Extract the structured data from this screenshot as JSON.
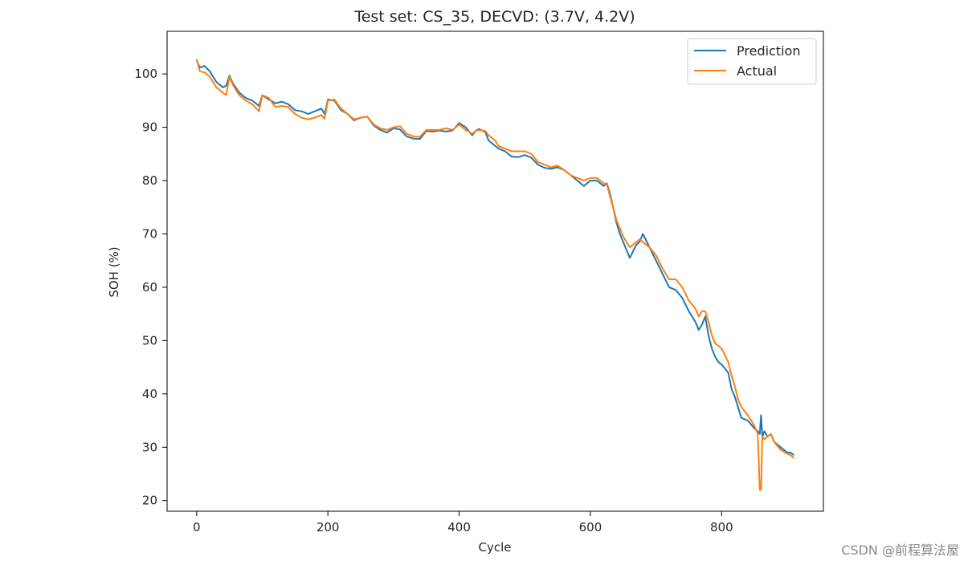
{
  "chart_data": {
    "type": "line",
    "title": "Test set: CS_35, DECVD: (3.7V, 4.2V)",
    "xlabel": "Cycle",
    "ylabel": "SOH (%)",
    "xlim": [
      -45,
      955
    ],
    "ylim": [
      18,
      108
    ],
    "xticks": [
      0,
      200,
      400,
      600,
      800
    ],
    "yticks": [
      20,
      30,
      40,
      50,
      60,
      70,
      80,
      90,
      100
    ],
    "legend_position": "top-right",
    "series": [
      {
        "name": "Prediction",
        "color": "#1f77b4",
        "points": [
          [
            0,
            102.5
          ],
          [
            5,
            101.2
          ],
          [
            12,
            101.5
          ],
          [
            20,
            100.5
          ],
          [
            30,
            98.5
          ],
          [
            40,
            97.5
          ],
          [
            45,
            97.8
          ],
          [
            50,
            99.7
          ],
          [
            55,
            98.3
          ],
          [
            65,
            96.5
          ],
          [
            75,
            95.5
          ],
          [
            85,
            95.0
          ],
          [
            95,
            94.0
          ],
          [
            100,
            96.0
          ],
          [
            110,
            95.2
          ],
          [
            120,
            94.5
          ],
          [
            130,
            94.8
          ],
          [
            140,
            94.3
          ],
          [
            150,
            93.2
          ],
          [
            160,
            93.0
          ],
          [
            170,
            92.5
          ],
          [
            180,
            93.0
          ],
          [
            190,
            93.5
          ],
          [
            195,
            92.5
          ],
          [
            200,
            95.2
          ],
          [
            210,
            95.0
          ],
          [
            220,
            93.2
          ],
          [
            230,
            92.5
          ],
          [
            240,
            91.3
          ],
          [
            250,
            91.8
          ],
          [
            260,
            92.0
          ],
          [
            270,
            90.3
          ],
          [
            280,
            89.5
          ],
          [
            290,
            89.0
          ],
          [
            300,
            89.8
          ],
          [
            310,
            89.6
          ],
          [
            320,
            88.3
          ],
          [
            330,
            87.9
          ],
          [
            340,
            87.8
          ],
          [
            350,
            89.3
          ],
          [
            360,
            89.2
          ],
          [
            370,
            89.4
          ],
          [
            380,
            89.2
          ],
          [
            390,
            89.4
          ],
          [
            400,
            90.8
          ],
          [
            410,
            90.0
          ],
          [
            420,
            88.5
          ],
          [
            425,
            89.3
          ],
          [
            430,
            89.7
          ],
          [
            440,
            89.1
          ],
          [
            445,
            87.5
          ],
          [
            455,
            86.5
          ],
          [
            460,
            86.0
          ],
          [
            470,
            85.5
          ],
          [
            480,
            84.5
          ],
          [
            490,
            84.4
          ],
          [
            500,
            84.8
          ],
          [
            510,
            84.3
          ],
          [
            520,
            83.0
          ],
          [
            530,
            82.4
          ],
          [
            540,
            82.2
          ],
          [
            550,
            82.5
          ],
          [
            560,
            82.0
          ],
          [
            570,
            81.0
          ],
          [
            580,
            80.0
          ],
          [
            590,
            79.0
          ],
          [
            600,
            80.0
          ],
          [
            610,
            80.0
          ],
          [
            620,
            79.0
          ],
          [
            625,
            79.5
          ],
          [
            630,
            77.5
          ],
          [
            640,
            72.0
          ],
          [
            645,
            70.0
          ],
          [
            650,
            68.5
          ],
          [
            660,
            65.5
          ],
          [
            670,
            68.0
          ],
          [
            675,
            68.5
          ],
          [
            680,
            70.0
          ],
          [
            690,
            67.5
          ],
          [
            700,
            65.0
          ],
          [
            710,
            62.5
          ],
          [
            720,
            60.0
          ],
          [
            730,
            59.5
          ],
          [
            740,
            58.0
          ],
          [
            750,
            55.5
          ],
          [
            760,
            53.5
          ],
          [
            765,
            52.0
          ],
          [
            770,
            53.0
          ],
          [
            775,
            54.5
          ],
          [
            780,
            51.0
          ],
          [
            785,
            48.5
          ],
          [
            790,
            47.0
          ],
          [
            795,
            46.0
          ],
          [
            800,
            45.5
          ],
          [
            810,
            44.0
          ],
          [
            815,
            41.0
          ],
          [
            820,
            39.5
          ],
          [
            825,
            37.5
          ],
          [
            830,
            35.5
          ],
          [
            840,
            35.0
          ],
          [
            850,
            33.5
          ],
          [
            855,
            33.0
          ],
          [
            858,
            32.5
          ],
          [
            860,
            36.0
          ],
          [
            862,
            32.0
          ],
          [
            865,
            33.0
          ],
          [
            870,
            32.0
          ],
          [
            875,
            32.5
          ],
          [
            880,
            31.0
          ],
          [
            890,
            30.0
          ],
          [
            900,
            29.0
          ],
          [
            905,
            29.0
          ],
          [
            910,
            28.5
          ]
        ]
      },
      {
        "name": "Actual",
        "color": "#ff7f0e",
        "points": [
          [
            0,
            102.8
          ],
          [
            5,
            100.5
          ],
          [
            12,
            100.3
          ],
          [
            20,
            99.5
          ],
          [
            30,
            97.5
          ],
          [
            40,
            96.5
          ],
          [
            45,
            96.0
          ],
          [
            50,
            99.5
          ],
          [
            55,
            98.0
          ],
          [
            65,
            96.0
          ],
          [
            75,
            95.0
          ],
          [
            85,
            94.3
          ],
          [
            95,
            93.0
          ],
          [
            100,
            96.0
          ],
          [
            110,
            95.5
          ],
          [
            120,
            93.8
          ],
          [
            130,
            94.0
          ],
          [
            140,
            93.8
          ],
          [
            150,
            92.5
          ],
          [
            160,
            91.8
          ],
          [
            170,
            91.5
          ],
          [
            180,
            91.8
          ],
          [
            190,
            92.3
          ],
          [
            195,
            91.6
          ],
          [
            200,
            95.0
          ],
          [
            210,
            95.2
          ],
          [
            220,
            93.5
          ],
          [
            230,
            92.5
          ],
          [
            240,
            91.5
          ],
          [
            250,
            91.8
          ],
          [
            260,
            92.0
          ],
          [
            270,
            90.5
          ],
          [
            280,
            89.8
          ],
          [
            290,
            89.5
          ],
          [
            300,
            90.0
          ],
          [
            310,
            90.2
          ],
          [
            320,
            88.8
          ],
          [
            330,
            88.3
          ],
          [
            340,
            88.2
          ],
          [
            350,
            89.5
          ],
          [
            360,
            89.5
          ],
          [
            370,
            89.5
          ],
          [
            380,
            89.8
          ],
          [
            390,
            89.5
          ],
          [
            400,
            90.5
          ],
          [
            410,
            89.5
          ],
          [
            420,
            88.8
          ],
          [
            425,
            89.3
          ],
          [
            430,
            89.5
          ],
          [
            440,
            89.3
          ],
          [
            445,
            88.5
          ],
          [
            455,
            87.5
          ],
          [
            460,
            86.5
          ],
          [
            470,
            86.0
          ],
          [
            480,
            85.5
          ],
          [
            490,
            85.5
          ],
          [
            500,
            85.5
          ],
          [
            510,
            85.0
          ],
          [
            520,
            83.5
          ],
          [
            530,
            83.0
          ],
          [
            540,
            82.5
          ],
          [
            550,
            82.8
          ],
          [
            560,
            82.0
          ],
          [
            570,
            81.0
          ],
          [
            580,
            80.5
          ],
          [
            590,
            80.0
          ],
          [
            600,
            80.5
          ],
          [
            610,
            80.5
          ],
          [
            620,
            79.5
          ],
          [
            625,
            79.3
          ],
          [
            630,
            77.0
          ],
          [
            640,
            72.5
          ],
          [
            645,
            71.0
          ],
          [
            650,
            69.5
          ],
          [
            660,
            67.5
          ],
          [
            670,
            68.5
          ],
          [
            675,
            69.0
          ],
          [
            680,
            68.5
          ],
          [
            690,
            67.5
          ],
          [
            700,
            66.0
          ],
          [
            710,
            63.5
          ],
          [
            720,
            61.5
          ],
          [
            730,
            61.5
          ],
          [
            740,
            60.0
          ],
          [
            750,
            57.5
          ],
          [
            760,
            56.0
          ],
          [
            765,
            54.5
          ],
          [
            770,
            55.5
          ],
          [
            775,
            55.5
          ],
          [
            780,
            53.5
          ],
          [
            785,
            51.0
          ],
          [
            790,
            49.5
          ],
          [
            795,
            49.0
          ],
          [
            800,
            48.5
          ],
          [
            810,
            46.0
          ],
          [
            815,
            43.5
          ],
          [
            820,
            41.5
          ],
          [
            825,
            39.0
          ],
          [
            830,
            37.5
          ],
          [
            840,
            36.0
          ],
          [
            850,
            34.0
          ],
          [
            855,
            32.5
          ],
          [
            858,
            22.0
          ],
          [
            860,
            22.0
          ],
          [
            862,
            32.0
          ],
          [
            865,
            31.5
          ],
          [
            870,
            32.0
          ],
          [
            875,
            32.5
          ],
          [
            880,
            31.0
          ],
          [
            890,
            29.5
          ],
          [
            900,
            28.8
          ],
          [
            905,
            28.5
          ],
          [
            910,
            28.0
          ]
        ]
      }
    ]
  },
  "watermark": "CSDN @前程算法屋"
}
